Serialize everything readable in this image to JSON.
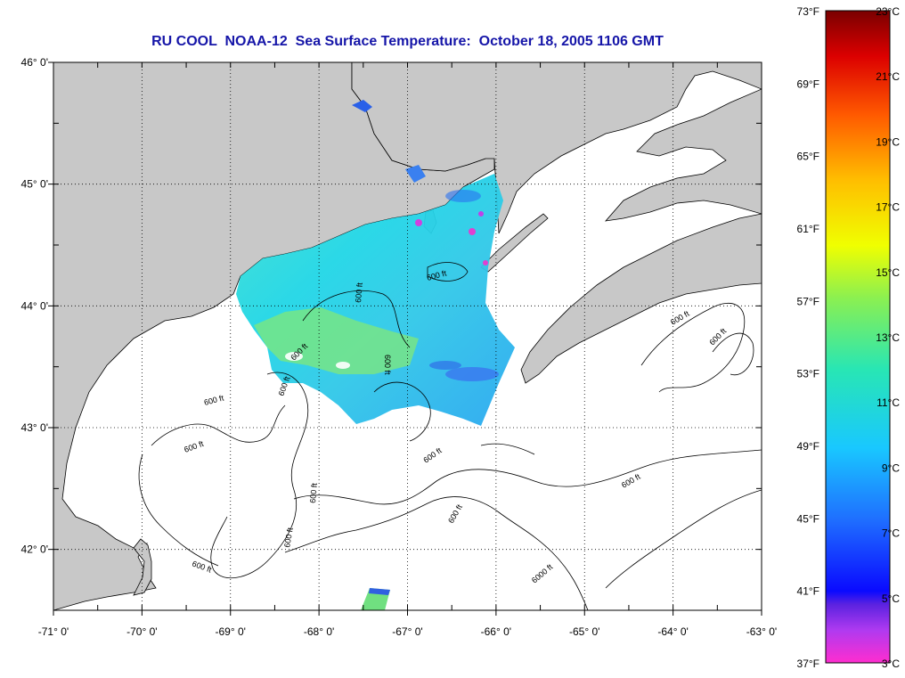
{
  "title": "RU COOL  NOAA-12  Sea Surface Temperature:  October 18, 2005 1106 GMT",
  "map": {
    "lon_range": [
      -71,
      -63
    ],
    "lat_range": [
      41.5,
      46
    ],
    "lon_ticks": [
      {
        "value": -71,
        "label": "-71° 0'"
      },
      {
        "value": -70,
        "label": "-70° 0'"
      },
      {
        "value": -69,
        "label": "-69° 0'"
      },
      {
        "value": -68,
        "label": "-68° 0'"
      },
      {
        "value": -67,
        "label": "-67° 0'"
      },
      {
        "value": -66,
        "label": "-66° 0'"
      },
      {
        "value": -65,
        "label": "-65° 0'"
      },
      {
        "value": -64,
        "label": "-64° 0'"
      },
      {
        "value": -63,
        "label": "-63° 0'"
      }
    ],
    "lat_ticks": [
      {
        "value": 46,
        "label": "46° 0'"
      },
      {
        "value": 45,
        "label": "45° 0'"
      },
      {
        "value": 44,
        "label": "44° 0'"
      },
      {
        "value": 43,
        "label": "43° 0'"
      },
      {
        "value": 42,
        "label": "42° 0'"
      }
    ],
    "grid": "dotted",
    "land_color": "#c8c8c8",
    "ocean_color": "#ffffff",
    "contour_label_600": "600 ft",
    "contour_label_6000": "6000 ft"
  },
  "colorbar": {
    "temp_range_c": [
      3,
      23
    ],
    "fahrenheit_labels": [
      "73°F",
      "69°F",
      "65°F",
      "61°F",
      "57°F",
      "53°F",
      "49°F",
      "45°F",
      "41°F",
      "37°F"
    ],
    "celsius_labels": [
      "23°C",
      "21°C",
      "19°C",
      "17°C",
      "15°C",
      "13°C",
      "11°C",
      "9°C",
      "7°C",
      "5°C",
      "3°C"
    ]
  }
}
